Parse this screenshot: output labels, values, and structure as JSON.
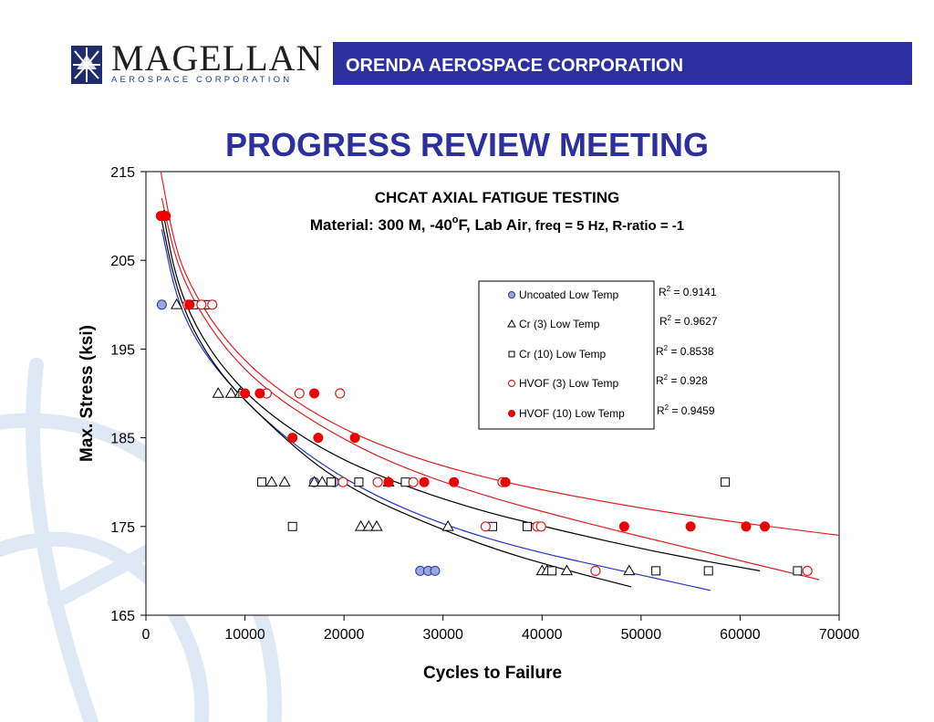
{
  "header": {
    "logo_name": "MAGELLAN",
    "logo_sub": "AEROSPACE CORPORATION",
    "banner": "ORENDA AEROSPACE CORPORATION"
  },
  "page_title": "PROGRESS REVIEW MEETING",
  "chart_data": {
    "type": "scatter",
    "title": "CHCAT AXIAL FATIGUE TESTING",
    "subtitle_main": "Material: 300 M, -40",
    "subtitle_deg": "o",
    "subtitle_mid": "F, Lab Air",
    "subtitle_small": ", freq = 5 Hz, R-ratio = -1",
    "xlabel": "Cycles to Failure",
    "ylabel": "Max. Stress (ksi)",
    "xlim": [
      0,
      70000
    ],
    "ylim": [
      165,
      215
    ],
    "xticks": [
      0,
      10000,
      20000,
      30000,
      40000,
      50000,
      60000,
      70000
    ],
    "yticks": [
      165,
      175,
      185,
      195,
      205,
      215
    ],
    "grid": false,
    "legend_position": "right",
    "series": [
      {
        "name": "Uncoated Low Temp",
        "marker": "circle-filled",
        "color": "#9aa6e0",
        "stroke": "#2b3a9a",
        "r2": "0.9141",
        "trend_color": "#2233cc",
        "trend": [
          [
            1600,
            208.5
          ],
          [
            3000,
            201
          ],
          [
            5000,
            196
          ],
          [
            8000,
            191.5
          ],
          [
            12000,
            187
          ],
          [
            17000,
            182.5
          ],
          [
            23000,
            178.5
          ],
          [
            30000,
            175.2
          ],
          [
            38000,
            172.5
          ],
          [
            48000,
            170
          ],
          [
            57000,
            167.8
          ]
        ],
        "points": [
          [
            1600,
            200
          ],
          [
            1700,
            210
          ],
          [
            17000,
            180
          ],
          [
            19000,
            180
          ],
          [
            27700,
            170
          ],
          [
            28500,
            170
          ],
          [
            29200,
            170
          ]
        ]
      },
      {
        "name": "Cr (3) Low Temp",
        "marker": "triangle",
        "color": "#000000",
        "r2": "0.9627",
        "trend_color": "#000000",
        "trend": [
          [
            1500,
            210
          ],
          [
            3000,
            202
          ],
          [
            5000,
            196.5
          ],
          [
            8000,
            191.5
          ],
          [
            12000,
            187
          ],
          [
            17000,
            182
          ],
          [
            22000,
            178.5
          ],
          [
            28000,
            175.5
          ],
          [
            35000,
            172.5
          ],
          [
            42000,
            170.2
          ],
          [
            49000,
            168.2
          ]
        ],
        "points": [
          [
            1800,
            210
          ],
          [
            3100,
            200
          ],
          [
            7300,
            190
          ],
          [
            8600,
            190
          ],
          [
            9500,
            190
          ],
          [
            12700,
            180
          ],
          [
            14000,
            180
          ],
          [
            17000,
            180
          ],
          [
            17800,
            180
          ],
          [
            21700,
            175
          ],
          [
            22500,
            175
          ],
          [
            23300,
            175
          ],
          [
            24500,
            180
          ],
          [
            30500,
            175
          ],
          [
            40000,
            170
          ],
          [
            40500,
            170
          ],
          [
            42500,
            170
          ],
          [
            48800,
            170
          ]
        ]
      },
      {
        "name": "Cr (10) Low Temp",
        "marker": "square",
        "color": "#000000",
        "r2": "0.8538",
        "trend_color": "#000000",
        "trend": [
          [
            1800,
            210
          ],
          [
            3000,
            203
          ],
          [
            5000,
            197.5
          ],
          [
            8000,
            192.5
          ],
          [
            12000,
            188
          ],
          [
            18000,
            183.5
          ],
          [
            25000,
            180
          ],
          [
            33000,
            177
          ],
          [
            42000,
            174.5
          ],
          [
            52000,
            172
          ],
          [
            62000,
            170
          ]
        ],
        "points": [
          [
            4800,
            200
          ],
          [
            6000,
            200
          ],
          [
            9800,
            190
          ],
          [
            11700,
            180
          ],
          [
            14800,
            175
          ],
          [
            18700,
            180
          ],
          [
            21500,
            180
          ],
          [
            26200,
            180
          ],
          [
            35000,
            175
          ],
          [
            38500,
            175
          ],
          [
            41000,
            170
          ],
          [
            51500,
            170
          ],
          [
            56800,
            170
          ],
          [
            58500,
            180
          ],
          [
            65800,
            170
          ]
        ]
      },
      {
        "name": "HVOF (3) Low Temp",
        "marker": "circle-open",
        "color": "#dd2222",
        "r2": "0.928",
        "trend_color": "#dd2222",
        "trend": [
          [
            1600,
            212
          ],
          [
            3000,
            205
          ],
          [
            5000,
            200
          ],
          [
            8000,
            195
          ],
          [
            12000,
            190.5
          ],
          [
            18000,
            186
          ],
          [
            25000,
            182
          ],
          [
            34000,
            178.5
          ],
          [
            44000,
            175.5
          ],
          [
            55000,
            172.5
          ],
          [
            68000,
            169
          ]
        ],
        "points": [
          [
            4200,
            200
          ],
          [
            5600,
            200
          ],
          [
            6700,
            200
          ],
          [
            12200,
            190
          ],
          [
            15500,
            190
          ],
          [
            19600,
            190
          ],
          [
            19900,
            180
          ],
          [
            23400,
            180
          ],
          [
            27000,
            180
          ],
          [
            34300,
            175
          ],
          [
            36000,
            180
          ],
          [
            39500,
            175
          ],
          [
            39900,
            175
          ],
          [
            45400,
            170
          ],
          [
            66800,
            170
          ]
        ]
      },
      {
        "name": "HVOF (10) Low Temp",
        "marker": "circle-filled",
        "color": "#ee0000",
        "stroke": "#ee0000",
        "r2": "0.9459",
        "trend_color": "#dd2222",
        "trend": [
          [
            1500,
            215
          ],
          [
            3000,
            206
          ],
          [
            5000,
            201
          ],
          [
            8000,
            196
          ],
          [
            12000,
            191.5
          ],
          [
            18000,
            187
          ],
          [
            25000,
            183.5
          ],
          [
            34000,
            180.5
          ],
          [
            45000,
            178
          ],
          [
            56000,
            176
          ],
          [
            70000,
            174
          ]
        ],
        "points": [
          [
            1500,
            210
          ],
          [
            2000,
            210
          ],
          [
            4400,
            200
          ],
          [
            10000,
            190
          ],
          [
            11500,
            190
          ],
          [
            14800,
            185
          ],
          [
            17000,
            190
          ],
          [
            17400,
            185
          ],
          [
            21100,
            185
          ],
          [
            24500,
            180
          ],
          [
            28100,
            180
          ],
          [
            31100,
            180
          ],
          [
            36300,
            180
          ],
          [
            48300,
            175
          ],
          [
            55000,
            175
          ],
          [
            60600,
            175
          ],
          [
            62500,
            175
          ]
        ]
      }
    ]
  }
}
